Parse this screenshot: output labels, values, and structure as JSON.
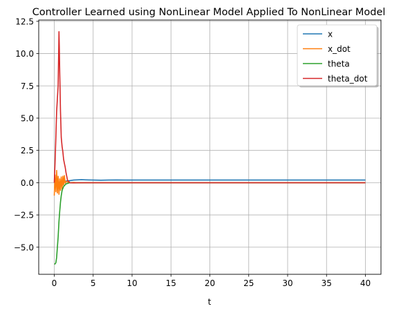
{
  "chart_data": {
    "type": "line",
    "title": "Controller Learned using NonLinear Model Applied To NonLinear Model",
    "xlabel": "t",
    "ylabel": "",
    "xlim": [
      -2.0,
      42.0
    ],
    "ylim": [
      -7.1,
      12.6
    ],
    "xticks": [
      0,
      5,
      10,
      15,
      20,
      25,
      30,
      35,
      40
    ],
    "yticks": [
      -5.0,
      -2.5,
      0.0,
      2.5,
      5.0,
      7.5,
      10.0,
      12.5
    ],
    "xtick_labels": [
      "0",
      "5",
      "10",
      "15",
      "20",
      "25",
      "30",
      "35",
      "40"
    ],
    "ytick_labels": [
      "−5.0",
      "−2.5",
      "0.0",
      "2.5",
      "5.0",
      "7.5",
      "10.0",
      "12.5"
    ],
    "grid": true,
    "legend_position": "top-right",
    "series": [
      {
        "name": "x",
        "color": "#1f77b4",
        "x": [
          0,
          0.2,
          0.5,
          1.0,
          1.5,
          2.0,
          2.5,
          3.0,
          3.5,
          4.0,
          5.0,
          6.0,
          7.0,
          8.0,
          9.0,
          10.0,
          12.0,
          15.0,
          20.0,
          25.0,
          30.0,
          35.0,
          40.0
        ],
        "y": [
          -0.05,
          -0.02,
          0.02,
          0.08,
          0.12,
          0.16,
          0.2,
          0.22,
          0.23,
          0.22,
          0.2,
          0.19,
          0.2,
          0.21,
          0.2,
          0.2,
          0.2,
          0.2,
          0.2,
          0.2,
          0.2,
          0.2,
          0.2
        ]
      },
      {
        "name": "x_dot",
        "color": "#ff7f0e",
        "x": [
          0,
          0.1,
          0.2,
          0.3,
          0.4,
          0.5,
          0.6,
          0.7,
          0.8,
          0.9,
          1.0,
          1.1,
          1.2,
          1.3,
          1.4,
          1.5,
          1.7,
          2.0,
          2.5,
          3.0,
          4.0,
          6.0,
          10.0,
          40.0
        ],
        "y": [
          -1.0,
          0.6,
          -0.7,
          0.95,
          -0.8,
          0.5,
          -0.9,
          0.3,
          -0.6,
          0.45,
          -0.5,
          0.5,
          -0.2,
          0.55,
          -0.05,
          0.1,
          0.05,
          0.0,
          0.02,
          -0.01,
          0.0,
          0.0,
          0.0,
          0.0
        ]
      },
      {
        "name": "theta",
        "color": "#2ca02c",
        "x": [
          0,
          0.1,
          0.2,
          0.3,
          0.4,
          0.5,
          0.6,
          0.7,
          0.8,
          0.9,
          1.0,
          1.2,
          1.5,
          2.0,
          2.5,
          3.0,
          4.0,
          5.0,
          10.0,
          40.0
        ],
        "y": [
          -6.3,
          -6.3,
          -6.2,
          -5.8,
          -5.0,
          -4.2,
          -3.0,
          -2.2,
          -1.5,
          -1.0,
          -0.6,
          -0.3,
          -0.1,
          0.0,
          -0.02,
          0.0,
          0.0,
          0.0,
          0.0,
          0.0
        ]
      },
      {
        "name": "theta_dot",
        "color": "#d62728",
        "x": [
          0,
          0.1,
          0.2,
          0.3,
          0.4,
          0.5,
          0.6,
          0.65,
          0.7,
          0.8,
          0.9,
          1.0,
          1.1,
          1.2,
          1.3,
          1.4,
          1.5,
          1.7,
          2.0,
          2.5,
          3.0,
          5.0,
          10.0,
          40.0
        ],
        "y": [
          0.0,
          1.5,
          3.5,
          5.5,
          6.5,
          7.5,
          11.7,
          10.5,
          8.5,
          5.5,
          3.5,
          2.8,
          2.4,
          1.8,
          1.5,
          1.2,
          0.8,
          0.2,
          0.0,
          -0.02,
          0.0,
          0.0,
          0.0,
          0.0
        ]
      }
    ]
  }
}
